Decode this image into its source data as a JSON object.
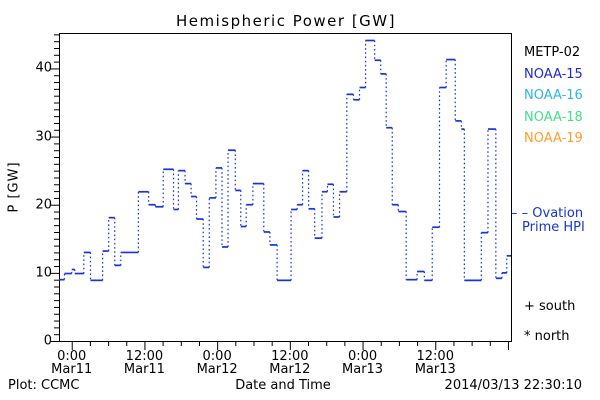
{
  "title": "Hemispheric Power [GW]",
  "y_axis_label": "P [GW]",
  "colors": {
    "frame": "#000000",
    "hpi_line": "#1535d8",
    "text": "#000000"
  },
  "legend": {
    "satellites": [
      {
        "label": "METP-02",
        "color": "#000000"
      },
      {
        "label": "NOAA-15",
        "color": "#2128d0"
      },
      {
        "label": "NOAA-16",
        "color": "#2fb4e8"
      },
      {
        "label": "NOAA-18",
        "color": "#46dd8a"
      },
      {
        "label": "NOAA-19",
        "color": "#ff9d2e"
      }
    ],
    "ovation_line1": "– – Ovation",
    "ovation_line2": "Prime HPI",
    "south_marker": "+ south",
    "north_marker": "* north"
  },
  "footer": {
    "left": "Plot: CCMC",
    "center": "Date and Time",
    "right": "2014/03/13 22:30:10"
  },
  "chart_data": {
    "type": "line",
    "subtype": "steps-post",
    "title": "Hemispheric Power [GW]",
    "xlabel": "Date and Time",
    "ylabel": "P [GW]",
    "x_unit": "hours since 2014-03-11 00:00 UT",
    "xlim": [
      -2.1,
      72.5
    ],
    "ylim": [
      0,
      45.2
    ],
    "grid": false,
    "y_major_ticks": [
      0,
      10,
      20,
      30,
      40
    ],
    "y_minor_step": 1,
    "x_minor_step": 3,
    "x_major_step": 12,
    "x_ticks": [
      {
        "t": 0,
        "time": "0:00",
        "date": "Mar11"
      },
      {
        "t": 12,
        "time": "12:00",
        "date": "Mar11"
      },
      {
        "t": 24,
        "time": "0:00",
        "date": "Mar12"
      },
      {
        "t": 36,
        "time": "12:00",
        "date": "Mar12"
      },
      {
        "t": 48,
        "time": "0:00",
        "date": "Mar13"
      },
      {
        "t": 60,
        "time": "12:00",
        "date": "Mar13"
      }
    ],
    "series": [
      {
        "name": "Ovation Prime HPI (northern hemisphere, GW)",
        "color": "#1535d8",
        "t_end": 72.5,
        "steps": [
          [
            -2.1,
            9.0
          ],
          [
            -1.2,
            9.9
          ],
          [
            0.0,
            10.5
          ],
          [
            0.5,
            9.9
          ],
          [
            2.0,
            13.0
          ],
          [
            3.1,
            8.9
          ],
          [
            5.1,
            13.2
          ],
          [
            6.1,
            18.1
          ],
          [
            7.1,
            11.1
          ],
          [
            8.1,
            13.0
          ],
          [
            11.0,
            21.9
          ],
          [
            12.7,
            20.0
          ],
          [
            13.8,
            19.7
          ],
          [
            15.1,
            25.2
          ],
          [
            16.8,
            19.3
          ],
          [
            17.6,
            25.0
          ],
          [
            18.7,
            23.1
          ],
          [
            19.7,
            21.2
          ],
          [
            20.6,
            17.9
          ],
          [
            21.7,
            10.8
          ],
          [
            22.7,
            21.0
          ],
          [
            23.8,
            25.4
          ],
          [
            24.8,
            13.8
          ],
          [
            25.8,
            28.0
          ],
          [
            27.0,
            22.1
          ],
          [
            27.9,
            16.8
          ],
          [
            28.8,
            20.0
          ],
          [
            29.9,
            23.1
          ],
          [
            31.7,
            16.0
          ],
          [
            32.7,
            14.1
          ],
          [
            33.9,
            8.9
          ],
          [
            36.2,
            19.3
          ],
          [
            37.2,
            20.0
          ],
          [
            38.1,
            25.0
          ],
          [
            39.1,
            19.4
          ],
          [
            40.1,
            15.1
          ],
          [
            41.3,
            21.9
          ],
          [
            42.2,
            23.0
          ],
          [
            43.2,
            18.2
          ],
          [
            44.2,
            21.9
          ],
          [
            45.4,
            36.2
          ],
          [
            46.5,
            35.4
          ],
          [
            47.5,
            37.2
          ],
          [
            48.5,
            44.1
          ],
          [
            50.0,
            41.2
          ],
          [
            51.0,
            39.2
          ],
          [
            51.9,
            31.3
          ],
          [
            52.9,
            20.0
          ],
          [
            53.9,
            19.0
          ],
          [
            55.2,
            9.0
          ],
          [
            57.0,
            10.2
          ],
          [
            58.2,
            8.9
          ],
          [
            59.5,
            16.7
          ],
          [
            60.7,
            37.2
          ],
          [
            61.8,
            41.3
          ],
          [
            63.3,
            32.3
          ],
          [
            64.3,
            31.1
          ],
          [
            64.8,
            8.9
          ],
          [
            67.6,
            15.9
          ],
          [
            68.7,
            31.1
          ],
          [
            70.0,
            9.2
          ],
          [
            71.0,
            10.0
          ],
          [
            71.8,
            12.5
          ]
        ]
      }
    ]
  }
}
